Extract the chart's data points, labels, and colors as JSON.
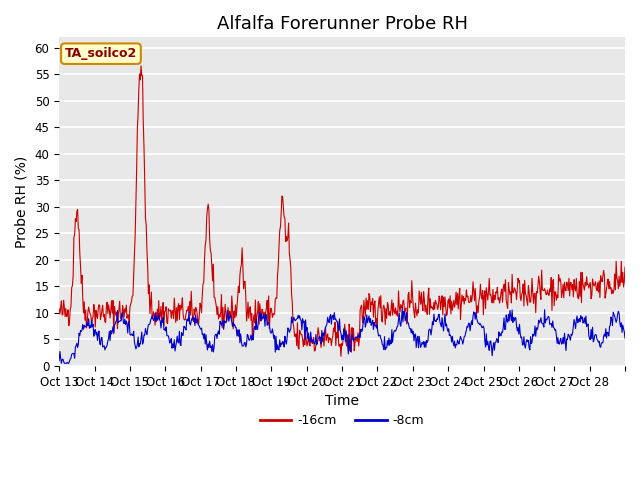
{
  "title": "Alfalfa Forerunner Probe RH",
  "xlabel": "Time",
  "ylabel": "Probe RH (%)",
  "ylim": [
    0,
    62
  ],
  "yticks": [
    0,
    5,
    10,
    15,
    20,
    25,
    30,
    35,
    40,
    45,
    50,
    55,
    60
  ],
  "xtick_labels": [
    "Oct 13",
    "Oct 14",
    "Oct 15",
    "Oct 16",
    "Oct 17",
    "Oct 18",
    "Oct 19",
    "Oct 20",
    "Oct 21",
    "Oct 22",
    "Oct 23",
    "Oct 24",
    "Oct 25",
    "Oct 26",
    "Oct 27",
    "Oct 28"
  ],
  "color_red": "#cc0000",
  "color_blue": "#0000cc",
  "legend_labels": [
    "-16cm",
    "-8cm"
  ],
  "annotation_text": "TA_soilco2",
  "annotation_bg": "#ffffcc",
  "annotation_border": "#cc8800",
  "background_color": "#e8e8e8",
  "title_fontsize": 13,
  "axis_fontsize": 10,
  "tick_fontsize": 8.5
}
